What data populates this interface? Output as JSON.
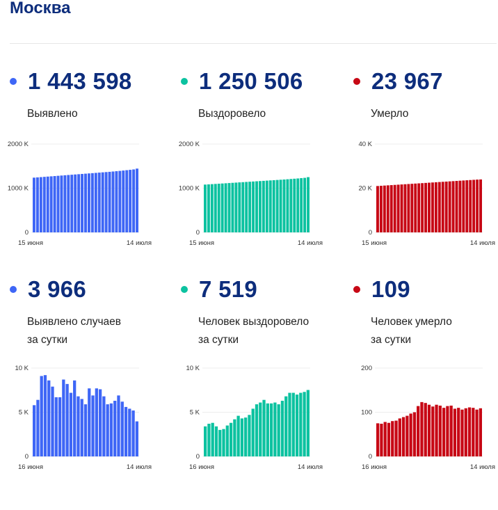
{
  "page": {
    "title": "Москва"
  },
  "colors": {
    "detected": "#3e66f6",
    "recovered": "#0cc2a0",
    "died": "#c70815",
    "title": "#0d2d7c"
  },
  "cards": [
    {
      "id": "detected-total",
      "value": "1 443 598",
      "label": "Выявлено",
      "label2": "",
      "color": "#3e66f6"
    },
    {
      "id": "recovered-total",
      "value": "1 250 506",
      "label": "Выздоровело",
      "label2": "",
      "color": "#0cc2a0"
    },
    {
      "id": "died-total",
      "value": "23 967",
      "label": "Умерло",
      "label2": "",
      "color": "#c70815"
    },
    {
      "id": "detected-daily",
      "value": "3 966",
      "label": "Выявлено случаев",
      "label2": "за сутки",
      "color": "#3e66f6"
    },
    {
      "id": "recovered-daily",
      "value": "7 519",
      "label": "Человек выздоровело",
      "label2": "за сутки",
      "color": "#0cc2a0"
    },
    {
      "id": "died-daily",
      "value": "109",
      "label": "Человек умерло",
      "label2": "за сутки",
      "color": "#c70815"
    }
  ],
  "chart_data": [
    {
      "type": "bar",
      "name": "",
      "x_start_label": "15 июня",
      "x_end_label": "14 июля",
      "ylim": [
        0,
        2000000
      ],
      "y_ticks": [
        0,
        1000000,
        2000000
      ],
      "y_tick_labels": [
        "0",
        "1000 K",
        "2000 K"
      ],
      "values": [
        1239000,
        1245000,
        1251000,
        1257000,
        1263000,
        1269000,
        1275000,
        1281000,
        1287000,
        1293000,
        1299000,
        1305000,
        1311000,
        1317000,
        1323000,
        1329000,
        1335000,
        1341000,
        1347000,
        1353000,
        1359000,
        1365000,
        1371000,
        1378000,
        1385000,
        1392000,
        1400000,
        1408000,
        1416000,
        1425000,
        1443598
      ]
    },
    {
      "type": "bar",
      "name": "",
      "x_start_label": "15 июня",
      "x_end_label": "14 июля",
      "ylim": [
        0,
        2000000
      ],
      "y_ticks": [
        0,
        1000000,
        2000000
      ],
      "y_tick_labels": [
        "0",
        "1000 K",
        "2000 K"
      ],
      "values": [
        1082000,
        1087000,
        1092000,
        1097000,
        1102000,
        1107000,
        1112000,
        1117000,
        1122000,
        1127000,
        1132000,
        1137000,
        1142000,
        1147000,
        1152000,
        1157000,
        1162000,
        1167000,
        1172000,
        1177000,
        1182000,
        1187000,
        1192000,
        1197000,
        1203000,
        1209000,
        1215000,
        1221000,
        1228000,
        1235000,
        1250506
      ]
    },
    {
      "type": "bar",
      "name": "",
      "x_start_label": "15 июня",
      "x_end_label": "14 июля",
      "ylim": [
        0,
        40000
      ],
      "y_ticks": [
        0,
        20000,
        40000
      ],
      "y_tick_labels": [
        "0",
        "20 K",
        "40 K"
      ],
      "values": [
        21000,
        21100,
        21200,
        21300,
        21400,
        21500,
        21600,
        21700,
        21800,
        21900,
        22000,
        22100,
        22200,
        22300,
        22400,
        22500,
        22600,
        22700,
        22800,
        22900,
        23000,
        23100,
        23200,
        23300,
        23400,
        23500,
        23600,
        23700,
        23800,
        23900,
        23967
      ]
    },
    {
      "type": "bar",
      "name": "",
      "x_start_label": "16 июня",
      "x_end_label": "14 июля",
      "ylim": [
        0,
        10000
      ],
      "y_ticks": [
        0,
        5000,
        10000
      ],
      "y_tick_labels": [
        "0",
        "5 K",
        "10 K"
      ],
      "values": [
        5800,
        6400,
        9100,
        9200,
        8600,
        7900,
        6700,
        6700,
        8700,
        8200,
        7200,
        8600,
        6800,
        6500,
        5900,
        7700,
        6900,
        7700,
        7600,
        6800,
        5900,
        6000,
        6300,
        6900,
        6200,
        5600,
        5400,
        5200,
        3966
      ]
    },
    {
      "type": "bar",
      "name": "",
      "x_start_label": "16 июня",
      "x_end_label": "14 июля",
      "ylim": [
        0,
        10000
      ],
      "y_ticks": [
        0,
        5000,
        10000
      ],
      "y_tick_labels": [
        "0",
        "5 K",
        "10 K"
      ],
      "values": [
        3400,
        3700,
        3800,
        3400,
        3000,
        3100,
        3500,
        3800,
        4200,
        4600,
        4300,
        4400,
        4700,
        5400,
        5900,
        6100,
        6400,
        6000,
        6000,
        6100,
        5900,
        6300,
        6800,
        7200,
        7200,
        7000,
        7200,
        7300,
        7519
      ]
    },
    {
      "type": "bar",
      "name": "",
      "x_start_label": "16 июня",
      "x_end_label": "14 июля",
      "ylim": [
        0,
        200
      ],
      "y_ticks": [
        0,
        100,
        200
      ],
      "y_tick_labels": [
        "0",
        "100",
        "200"
      ],
      "values": [
        75,
        74,
        78,
        76,
        80,
        81,
        86,
        89,
        92,
        97,
        100,
        114,
        123,
        121,
        117,
        113,
        117,
        115,
        110,
        114,
        115,
        108,
        110,
        106,
        109,
        111,
        110,
        106,
        109
      ]
    }
  ]
}
